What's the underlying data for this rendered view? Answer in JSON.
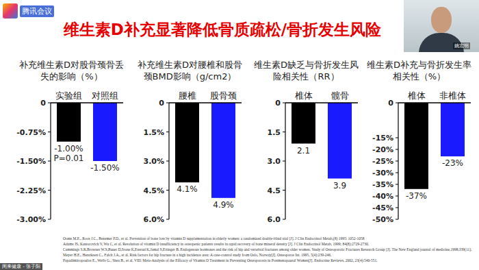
{
  "header": {
    "logo": "腾讯会议",
    "title": "维生素D补充显著降低骨质疏松/骨折发生风险"
  },
  "video": {
    "name": "姚宏明"
  },
  "footer": {
    "caption": "闲来健康 - 张子阳"
  },
  "chart_data": [
    {
      "type": "bar",
      "title": "补充维生素D对股骨颈骨丢失的影响（%）",
      "categories": [
        "实验组",
        "对照组"
      ],
      "values": [
        -1.0,
        -1.5
      ],
      "value_labels": [
        "-1.00%",
        "-1.50%"
      ],
      "colors": [
        "#000000",
        "#1a1aff"
      ],
      "ylim": [
        -3,
        0
      ],
      "yticks": [
        0,
        {
          "value": -0.75,
          "label": "-0.75%"
        },
        {
          "value": -1.5,
          "label": "-1.50%"
        },
        {
          "value": -2.25,
          "label": "-2.25%"
        },
        {
          "value": -3,
          "label": "-3.00%"
        }
      ],
      "annotations": [
        "P=0.01"
      ],
      "data_labels": true,
      "grid": false
    },
    {
      "type": "bar",
      "title": "补充维生素D对腰椎和股骨颈BMD影响（g/cm2）",
      "categories": [
        "腰椎",
        "股骨颈"
      ],
      "values": [
        4.1,
        4.9
      ],
      "value_labels": [
        "4.1%",
        "4.9%"
      ],
      "colors": [
        "#000000",
        "#1a1aff"
      ],
      "ylim": [
        6,
        0
      ],
      "yticks": [
        0,
        {
          "value": 1.5,
          "label": "1.5%"
        },
        {
          "value": 3,
          "label": "3.0%"
        },
        {
          "value": 4.5,
          "label": "4.5%"
        },
        {
          "value": 6,
          "label": "6.0%"
        }
      ],
      "data_labels": true,
      "grid": false
    },
    {
      "type": "bar",
      "title": "维生素D缺乏与骨折发生风险相关性（RR）",
      "categories": [
        "椎体",
        "髋骨"
      ],
      "values": [
        2.1,
        3.9
      ],
      "colors": [
        "#000000",
        "#1a1aff"
      ],
      "ylim": [
        6,
        0
      ],
      "yticks": [
        0,
        1.5,
        {
          "value": 3,
          "label": "3.0"
        },
        4.5,
        {
          "value": 6,
          "label": "6.0"
        }
      ],
      "data_labels": true,
      "grid": false
    },
    {
      "type": "bar",
      "title": "维生素D补充与骨折发生率相关性（%）",
      "categories": [
        "椎体",
        "非椎体"
      ],
      "values": [
        -37,
        -23
      ],
      "value_labels": [
        "-37%",
        "-23%"
      ],
      "colors": [
        "#000000",
        "#1a1aff"
      ],
      "ylim": [
        -50,
        0
      ],
      "yticks": [
        0,
        {
          "value": -15,
          "label": "-15%"
        },
        {
          "value": -20,
          "label": "-20%"
        },
        {
          "value": -25,
          "label": "-25%"
        },
        {
          "value": -30,
          "label": "-30%"
        },
        {
          "value": -35,
          "label": "-35%"
        },
        {
          "value": -40,
          "label": "-40%"
        },
        {
          "value": -45,
          "label": "-45%"
        },
        {
          "value": -50,
          "label": "-50%"
        }
      ],
      "data_labels": true,
      "grid": false
    }
  ],
  "references": [
    "Ooms M.E., Roos J.C., Bezemer P.D., et al. Prevention of bone loss by vitamin D supplementation in elderly women: a randomized double-blind trial [J]. J Clin Endocrinol Metab,(8) 1995: 1052-1058",
    "Adams JS, Kantorovich V, Wu C, et al. Resolution of vitamin D insufficiency in osteopenic patients results in rapid recovery of bone mineral density [J]. J Clin Endocrinol Metab, 1999; 84(8):2729-2730.",
    "Cummings S.R,Browner W.S,Bauer D,Stone K,Ensrud K,Jamal S,Ettinger B. Endogenous hormones and the risk of hip and vertebral fractures among older women. Study of Osteoporotic Fractures Research Group [J]. The New England journal of medicine,1998,339(11).",
    "Meyer H.E., Henriksen C., Falch J.A., et al. Risk factors for hip fracture in a high incidence area: A case-control study from Oslo, Norway[J]. Osteoporos Int. 1995, 5(4):239-246.",
    "Papadimitropoulos E., Wells G., Shea B., et al. VIII: Meta-Analysis of the Efficacy of Vitamin D Treatment in Preventing Osteoporosis in Postmenopausal Women[J]. Endocrine Reviews, 2002, 23(4):540-551."
  ]
}
